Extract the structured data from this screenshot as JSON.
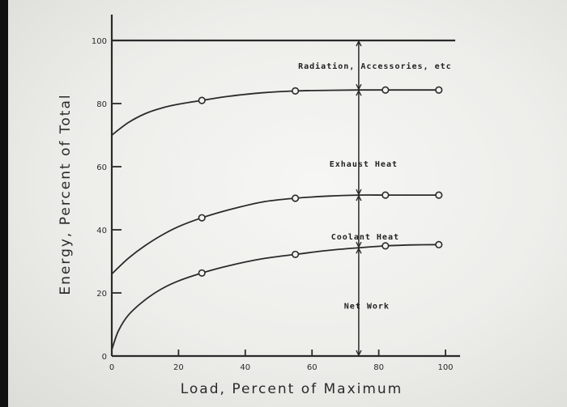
{
  "chart_data": {
    "type": "line",
    "xlabel": "Load, Percent of Maximum",
    "ylabel": "Energy, Percent of Total",
    "x_ticks": [
      "0",
      "20",
      "40",
      "60",
      "80",
      "100"
    ],
    "y_ticks": [
      "0",
      "20",
      "40",
      "60",
      "80",
      "100"
    ],
    "xlim": [
      0,
      100
    ],
    "ylim": [
      0,
      100
    ],
    "grid": false,
    "series": [
      {
        "curve": [
          [
            0,
            70
          ],
          [
            5,
            74
          ],
          [
            10,
            76.8
          ],
          [
            15,
            78.6
          ],
          [
            20,
            79.8
          ],
          [
            27,
            81
          ],
          [
            35,
            82.3
          ],
          [
            45,
            83.4
          ],
          [
            55,
            84
          ],
          [
            65,
            84.2
          ],
          [
            74,
            84.3
          ],
          [
            82,
            84.3
          ],
          [
            89,
            84.3
          ],
          [
            98,
            84.3
          ]
        ],
        "markers": [
          [
            27,
            81
          ],
          [
            55,
            84
          ],
          [
            82,
            84.3
          ],
          [
            98,
            84.3
          ]
        ]
      },
      {
        "curve": [
          [
            0,
            26
          ],
          [
            5,
            31
          ],
          [
            10,
            35
          ],
          [
            15,
            38.3
          ],
          [
            20,
            41
          ],
          [
            27,
            43.8
          ],
          [
            35,
            46.3
          ],
          [
            45,
            48.8
          ],
          [
            55,
            50
          ],
          [
            65,
            50.7
          ],
          [
            74,
            51
          ],
          [
            82,
            51
          ],
          [
            90,
            51
          ],
          [
            98,
            51
          ]
        ],
        "markers": [
          [
            27,
            43.8
          ],
          [
            55,
            50
          ],
          [
            82,
            51
          ],
          [
            98,
            51
          ]
        ]
      },
      {
        "curve": [
          [
            0,
            2
          ],
          [
            2,
            8
          ],
          [
            5,
            13
          ],
          [
            10,
            17.8
          ],
          [
            15,
            21.3
          ],
          [
            20,
            23.8
          ],
          [
            27,
            26.3
          ],
          [
            35,
            28.6
          ],
          [
            45,
            30.8
          ],
          [
            55,
            32.2
          ],
          [
            65,
            33.5
          ],
          [
            74,
            34.3
          ],
          [
            82,
            34.9
          ],
          [
            90,
            35.2
          ],
          [
            98,
            35.3
          ]
        ],
        "markers": [
          [
            27,
            26.3
          ],
          [
            55,
            32.2
          ],
          [
            82,
            34.9
          ],
          [
            98,
            35.3
          ]
        ]
      }
    ],
    "top_line": 100,
    "annotations": {
      "x": 74,
      "labels": [
        {
          "text": "Radiation, Accessories, etc",
          "y_top": 100,
          "y_bottom": 84.3
        },
        {
          "text": "Exhaust Heat",
          "y_top": 84.3,
          "y_bottom": 51
        },
        {
          "text": "Coolant Heat",
          "y_top": 51,
          "y_bottom": 34.3
        },
        {
          "text": "Net Work",
          "y_top": 34.3,
          "y_bottom": 0
        }
      ]
    }
  }
}
